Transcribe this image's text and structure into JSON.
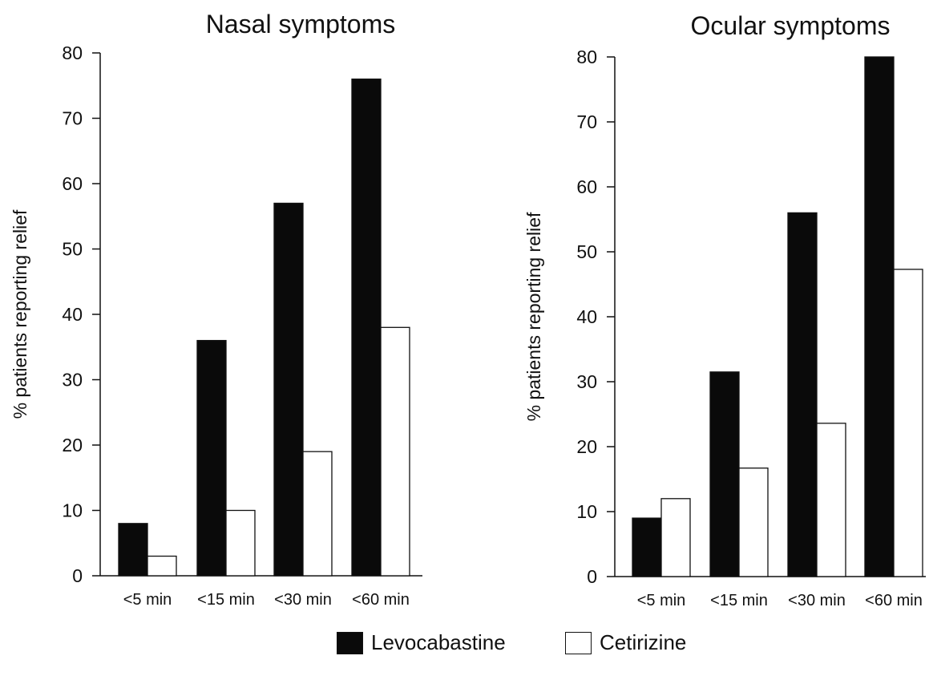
{
  "chart_data": [
    {
      "type": "bar",
      "title": "Nasal symptoms",
      "ylabel": "% patients reporting relief",
      "xlabel": "",
      "categories": [
        "<5 min",
        "<15 min",
        "<30 min",
        "<60 min"
      ],
      "ylim": [
        0,
        80
      ],
      "yticks": [
        0,
        10,
        20,
        30,
        40,
        50,
        60,
        70,
        80
      ],
      "grid": false,
      "series": [
        {
          "name": "Levocabastine",
          "color": "#0a0a0a",
          "values": [
            8,
            36,
            57,
            76
          ]
        },
        {
          "name": "Cetirizine",
          "color": "#ffffff",
          "values": [
            3,
            10,
            19,
            38
          ]
        }
      ]
    },
    {
      "type": "bar",
      "title": "Ocular symptoms",
      "ylabel": "% patients reporting relief",
      "xlabel": "",
      "categories": [
        "<5 min",
        "<15 min",
        "<30 min",
        "<60 min"
      ],
      "ylim": [
        0,
        80
      ],
      "yticks": [
        0,
        10,
        20,
        30,
        40,
        50,
        60,
        70,
        80
      ],
      "grid": false,
      "series": [
        {
          "name": "Levocabastine",
          "color": "#0a0a0a",
          "values": [
            9,
            31.5,
            56,
            80
          ]
        },
        {
          "name": "Cetirizine",
          "color": "#ffffff",
          "values": [
            12,
            16.7,
            23.6,
            47.3
          ]
        }
      ]
    }
  ],
  "legend": {
    "placement": "bottom-center",
    "items": [
      {
        "label": "Levocabastine",
        "color": "#0a0a0a"
      },
      {
        "label": "Cetirizine",
        "color": "#ffffff"
      }
    ]
  }
}
